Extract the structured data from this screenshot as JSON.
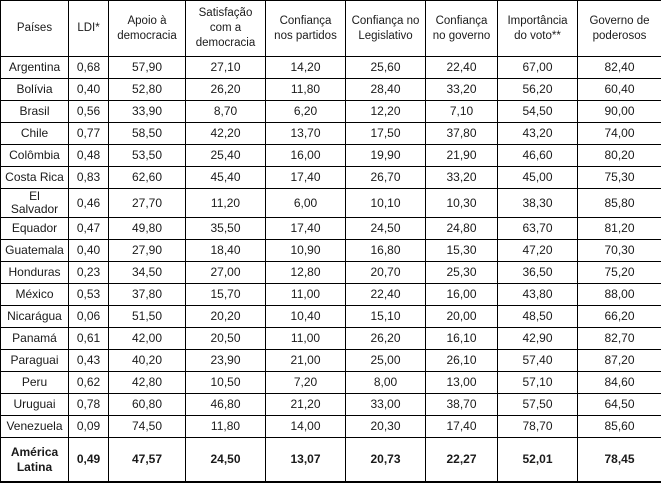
{
  "table": {
    "headers": [
      "Países",
      "LDI*",
      "Apoio à democracia",
      "Satisfação com a democracia",
      "Confiança nos partidos",
      "Confiança no Legislativo",
      "Confiança no governo",
      "Importância do voto**",
      "Governo de poderosos"
    ],
    "rows": [
      [
        "Argentina",
        "0,68",
        "57,90",
        "27,10",
        "14,20",
        "25,60",
        "22,40",
        "67,00",
        "82,40"
      ],
      [
        "Bolívia",
        "0,40",
        "52,80",
        "26,20",
        "11,80",
        "28,40",
        "33,20",
        "56,20",
        "60,40"
      ],
      [
        "Brasil",
        "0,56",
        "33,90",
        "8,70",
        "6,20",
        "12,20",
        "7,10",
        "54,50",
        "90,00"
      ],
      [
        "Chile",
        "0,77",
        "58,50",
        "42,20",
        "13,70",
        "17,50",
        "37,80",
        "43,20",
        "74,00"
      ],
      [
        "Colômbia",
        "0,48",
        "53,50",
        "25,40",
        "16,00",
        "19,90",
        "21,90",
        "46,60",
        "80,20"
      ],
      [
        "Costa Rica",
        "0,83",
        "62,60",
        "45,40",
        "17,40",
        "26,70",
        "33,20",
        "45,00",
        "75,30"
      ],
      [
        "El Salvador",
        "0,46",
        "27,70",
        "11,20",
        "6,00",
        "10,10",
        "10,30",
        "38,30",
        "85,80"
      ],
      [
        "Equador",
        "0,47",
        "49,80",
        "35,50",
        "17,40",
        "24,50",
        "24,80",
        "63,70",
        "81,20"
      ],
      [
        "Guatemala",
        "0,40",
        "27,90",
        "18,40",
        "10,90",
        "16,80",
        "15,30",
        "47,20",
        "70,30"
      ],
      [
        "Honduras",
        "0,23",
        "34,50",
        "27,00",
        "12,80",
        "20,70",
        "25,30",
        "36,50",
        "75,20"
      ],
      [
        "México",
        "0,53",
        "37,80",
        "15,70",
        "11,00",
        "22,40",
        "16,00",
        "43,80",
        "88,00"
      ],
      [
        "Nicarágua",
        "0,06",
        "51,50",
        "20,20",
        "10,40",
        "15,10",
        "20,00",
        "48,50",
        "66,20"
      ],
      [
        "Panamá",
        "0,61",
        "42,00",
        "20,50",
        "11,00",
        "26,20",
        "16,10",
        "42,90",
        "82,70"
      ],
      [
        "Paraguai",
        "0,43",
        "40,20",
        "23,90",
        "21,00",
        "25,00",
        "26,10",
        "57,40",
        "87,20"
      ],
      [
        "Peru",
        "0,62",
        "42,80",
        "10,50",
        "7,20",
        "8,00",
        "13,00",
        "57,10",
        "84,60"
      ],
      [
        "Uruguai",
        "0,78",
        "60,80",
        "46,80",
        "21,20",
        "33,00",
        "38,70",
        "57,50",
        "64,50"
      ],
      [
        "Venezuela",
        "0,09",
        "74,50",
        "11,80",
        "14,00",
        "20,30",
        "17,40",
        "78,70",
        "85,60"
      ]
    ],
    "summary": [
      "América Latina",
      "0,49",
      "47,57",
      "24,50",
      "13,07",
      "20,73",
      "22,27",
      "52,01",
      "78,45"
    ]
  }
}
